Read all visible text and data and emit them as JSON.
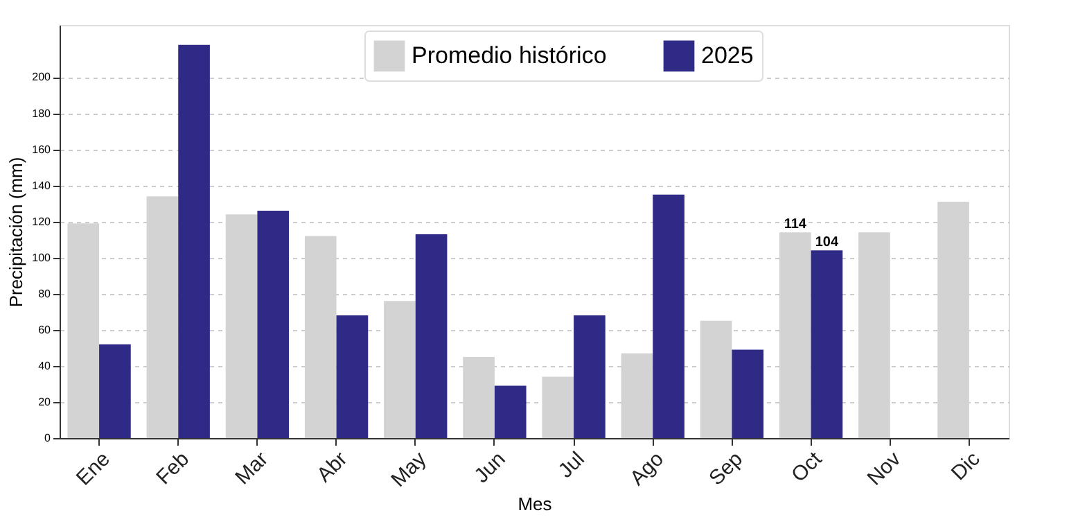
{
  "chart_data": {
    "type": "bar",
    "xlabel": "Mes",
    "ylabel": "Precipitación (mm)",
    "categories": [
      "Ene",
      "Feb",
      "Mar",
      "Abr",
      "May",
      "Jun",
      "Jul",
      "Ago",
      "Sep",
      "Oct",
      "Nov",
      "Dic"
    ],
    "series": [
      {
        "name": "Promedio histórico",
        "color": "#d3d3d3",
        "values": [
          119,
          134,
          124,
          112,
          76,
          45,
          34,
          47,
          65,
          114,
          114,
          131
        ],
        "value_labels": [
          null,
          null,
          null,
          null,
          null,
          null,
          null,
          null,
          null,
          "114",
          null,
          null
        ]
      },
      {
        "name": "2025",
        "color": "#2e2a85",
        "values": [
          52,
          218,
          126,
          68,
          113,
          29,
          68,
          135,
          49,
          104,
          null,
          null
        ],
        "value_labels": [
          null,
          null,
          null,
          null,
          null,
          null,
          null,
          null,
          null,
          "104",
          null,
          null
        ]
      }
    ],
    "ylim": [
      0,
      229
    ],
    "yticks": [
      0,
      20,
      40,
      60,
      80,
      100,
      120,
      140,
      160,
      180,
      200
    ],
    "grid": "y",
    "legend": "top"
  }
}
